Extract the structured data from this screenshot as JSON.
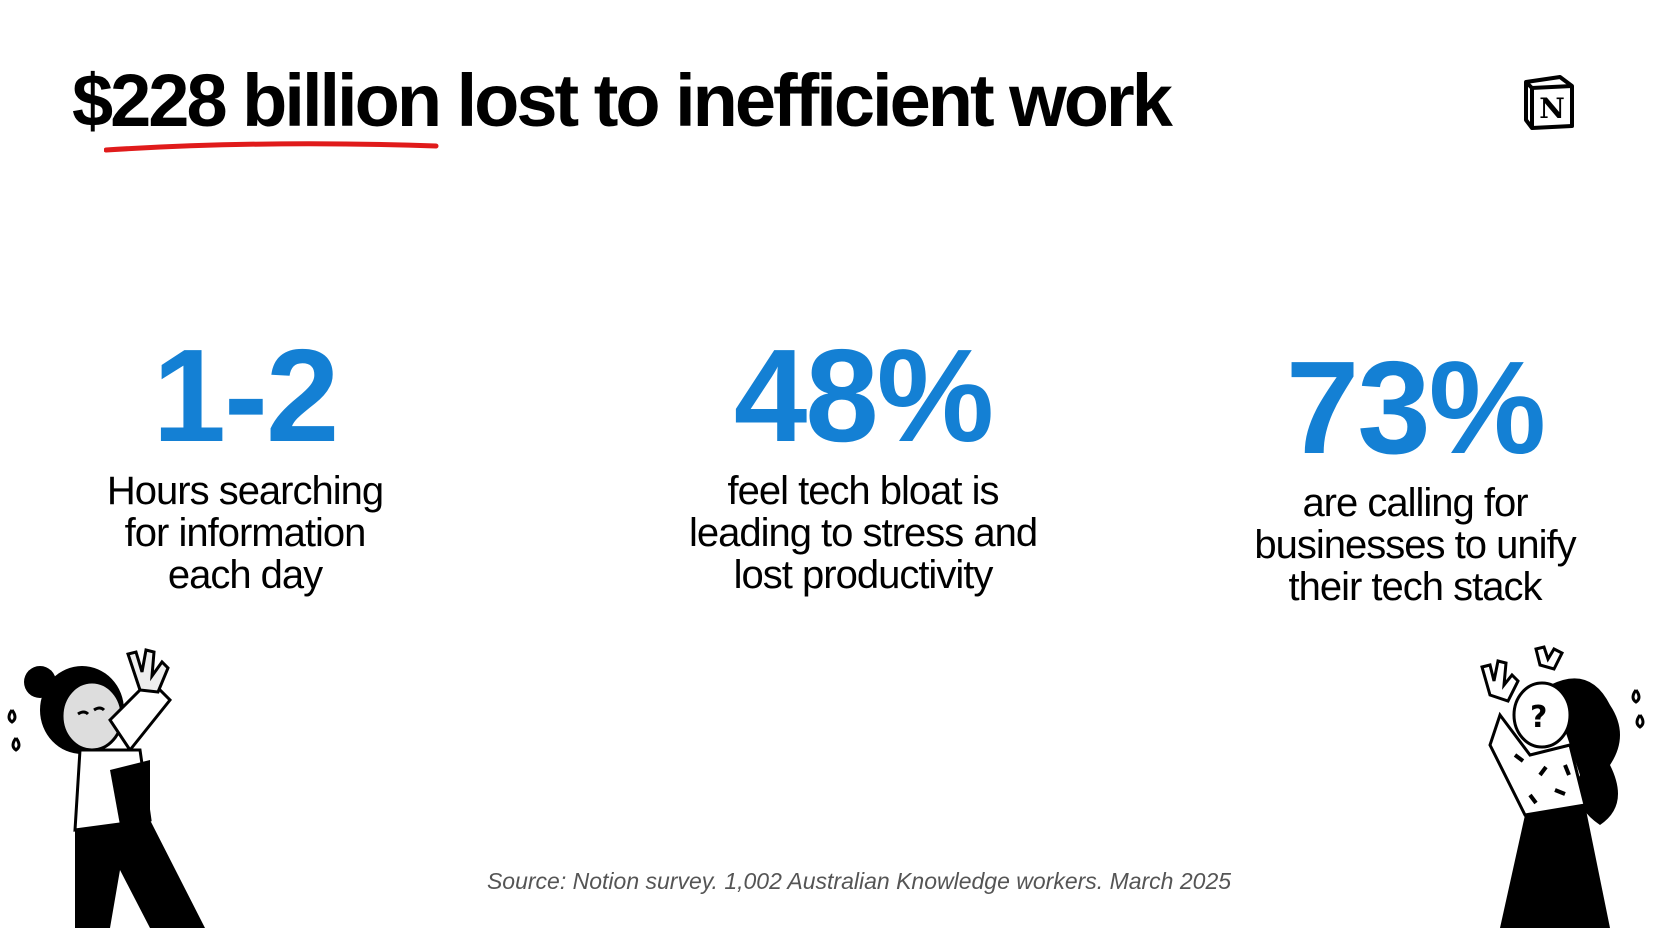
{
  "title": "$228 billion lost to inefficient work",
  "accent_color": "#1480d4",
  "underline_color": "#e01b1b",
  "logo": {
    "name": "notion-logo",
    "letter": "N"
  },
  "stats": [
    {
      "value": "1-2",
      "label_lines": [
        "Hours searching",
        "for information",
        "each day"
      ]
    },
    {
      "value": "48%",
      "label_lines": [
        "feel tech bloat is",
        "leading to stress and",
        "lost productivity"
      ]
    },
    {
      "value": "73%",
      "label_lines": [
        "are calling for",
        "businesses to unify",
        "their tech stack"
      ]
    }
  ],
  "source": "Source: Notion survey. 1,002 Australian Knowledge workers. March 2025"
}
